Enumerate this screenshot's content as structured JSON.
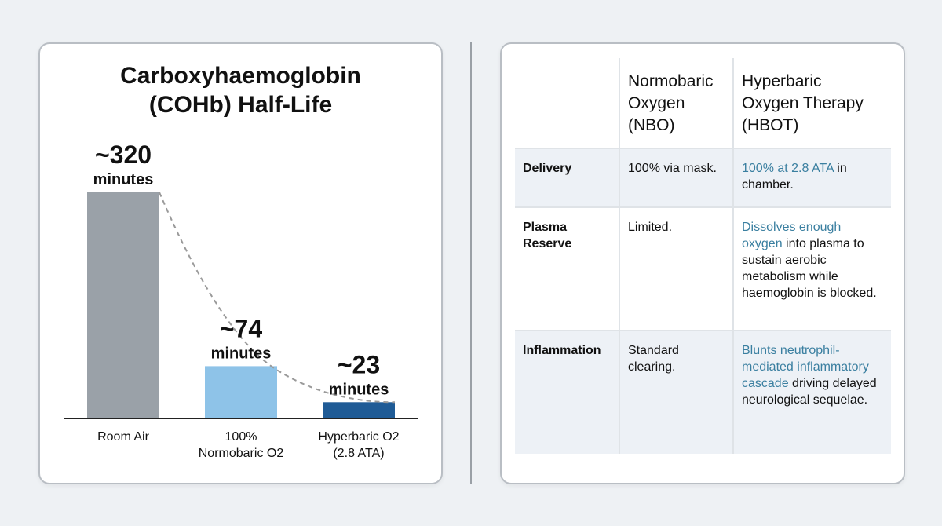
{
  "chart_data": {
    "type": "bar",
    "title_lines": [
      "Carboxyhaemoglobin",
      "(COHb) Half-Life"
    ],
    "categories": [
      [
        "Room Air"
      ],
      [
        "100%",
        "Normobaric O2"
      ],
      [
        "Hyperbaric O2",
        "(2.8 ATA)"
      ]
    ],
    "values": [
      320,
      74,
      23
    ],
    "value_labels": [
      {
        "num": "~320",
        "unit": "minutes"
      },
      {
        "num": "~74",
        "unit": "minutes"
      },
      {
        "num": "~23",
        "unit": "minutes"
      }
    ],
    "ylim": [
      0,
      320
    ],
    "xlabel": "",
    "ylabel": "",
    "grid": false,
    "bar_colors": [
      "#9aa1a8",
      "#8ec3e8",
      "#1f5b96"
    ],
    "trend_line": "dashed",
    "trend_color": "#9a9a9a"
  },
  "table": {
    "headers": [
      "",
      "Normobaric Oxygen (NBO)",
      "Hyperbaric Oxygen Therapy (HBOT)"
    ],
    "header_lines": [
      [],
      [
        "Normobaric",
        "Oxygen",
        "(NBO)"
      ],
      [
        "Hyperbaric",
        "Oxygen Therapy",
        "(HBOT)"
      ]
    ],
    "highlight_color": "#3a7fa0",
    "rows": [
      {
        "label": "Delivery",
        "nbo": "100% via mask.",
        "hbot_highlight": "100% at 2.8 ATA",
        "hbot_rest": " in chamber."
      },
      {
        "label": "Plasma Reserve",
        "nbo": "Limited.",
        "hbot_highlight": "Dissolves enough oxygen",
        "hbot_rest": " into plasma to sustain aerobic metabolism while haemoglobin is blocked."
      },
      {
        "label": "Inflammation",
        "nbo": "Standard clearing.",
        "hbot_highlight": "Blunts neutrophil-mediated inflammatory cascade",
        "hbot_rest": " driving delayed neurological sequelae."
      }
    ]
  }
}
